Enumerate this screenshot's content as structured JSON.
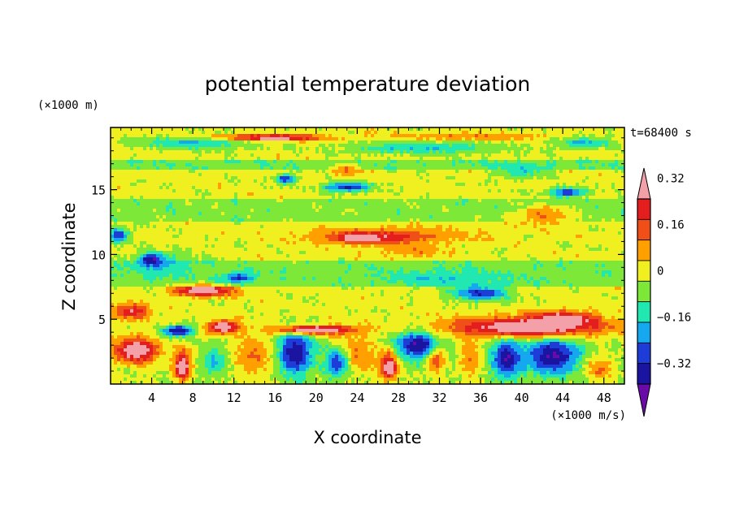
{
  "chart_data": {
    "type": "heatmap",
    "title": "potential temperature deviation",
    "xlabel": "X coordinate",
    "ylabel": "Z coordinate",
    "x_unit": "(×1000 m/s)",
    "y_unit": "(×1000 m)",
    "time_label": "t=68400 s",
    "xlim": [
      0,
      50
    ],
    "ylim": [
      0,
      19.8
    ],
    "x_ticks": [
      4,
      8,
      12,
      16,
      20,
      24,
      28,
      32,
      36,
      40,
      44,
      48
    ],
    "y_ticks": [
      5,
      10,
      15
    ],
    "colorbar": {
      "labels": [
        "0.32",
        "0.16",
        "0",
        "-0.16",
        "-0.32"
      ],
      "label_values": [
        0.32,
        0.16,
        0,
        -0.16,
        -0.32
      ],
      "levels": [
        -0.4,
        -0.32,
        -0.24,
        -0.16,
        -0.08,
        0,
        0.08,
        0.16,
        0.24,
        0.32,
        0.4
      ],
      "colors": [
        "#6a0aa8",
        "#1a14a0",
        "#1e3cd8",
        "#16a8ee",
        "#20e8b0",
        "#7ee838",
        "#f0f020",
        "#ffa000",
        "#f05018",
        "#e41e1e",
        "#f4a0a8"
      ],
      "extend": "both"
    },
    "features": [
      {
        "x": 2.5,
        "z": 2.6,
        "rx": 2.3,
        "rz": 1.0,
        "value": 0.45
      },
      {
        "x": 7.0,
        "z": 1.6,
        "rx": 1.0,
        "rz": 1.3,
        "value": 0.32
      },
      {
        "x": 7.0,
        "z": 1.2,
        "rx": 0.6,
        "rz": 0.6,
        "value": 0.45
      },
      {
        "x": 27.0,
        "z": 1.6,
        "rx": 1.0,
        "rz": 1.3,
        "value": 0.32
      },
      {
        "x": 27.2,
        "z": 1.3,
        "rx": 0.6,
        "rz": 0.8,
        "value": 0.45
      },
      {
        "x": 31.5,
        "z": 2.4,
        "rx": 1.0,
        "rz": 1.2,
        "value": 0.45
      },
      {
        "x": 14.0,
        "z": 2.2,
        "rx": 2.2,
        "rz": 1.6,
        "value": 0.16
      },
      {
        "x": 24.0,
        "z": 2.4,
        "rx": 2.0,
        "rz": 1.6,
        "value": 0.16
      },
      {
        "x": 35.0,
        "z": 2.0,
        "rx": 1.2,
        "rz": 1.6,
        "value": 0.16
      },
      {
        "x": 18.0,
        "z": 2.4,
        "rx": 1.8,
        "rz": 1.8,
        "value": -0.4
      },
      {
        "x": 22.0,
        "z": 1.6,
        "rx": 1.2,
        "rz": 1.2,
        "value": -0.32
      },
      {
        "x": 30.0,
        "z": 3.0,
        "rx": 2.5,
        "rz": 1.2,
        "value": -0.4
      },
      {
        "x": 38.5,
        "z": 2.0,
        "rx": 1.5,
        "rz": 1.6,
        "value": -0.4
      },
      {
        "x": 43.0,
        "z": 2.2,
        "rx": 3.0,
        "rz": 1.6,
        "value": -0.4
      },
      {
        "x": 10.0,
        "z": 1.8,
        "rx": 1.2,
        "rz": 1.2,
        "value": -0.16
      },
      {
        "x": 47.5,
        "z": 1.2,
        "rx": 1.5,
        "rz": 1.0,
        "value": 0.16
      },
      {
        "x": 6.5,
        "z": 4.1,
        "rx": 1.6,
        "rz": 0.45,
        "value": -0.4
      },
      {
        "x": 40.5,
        "z": 4.4,
        "rx": 8.0,
        "rz": 0.8,
        "value": 0.45
      },
      {
        "x": 44.0,
        "z": 5.0,
        "rx": 3.0,
        "rz": 0.6,
        "value": 0.45
      },
      {
        "x": 20.0,
        "z": 4.2,
        "rx": 4.0,
        "rz": 0.35,
        "value": 0.45
      },
      {
        "x": 11.0,
        "z": 4.4,
        "rx": 1.6,
        "rz": 0.5,
        "value": 0.45
      },
      {
        "x": 2.0,
        "z": 5.6,
        "rx": 2.0,
        "rz": 0.6,
        "value": 0.32
      },
      {
        "x": 9.0,
        "z": 7.2,
        "rx": 3.0,
        "rz": 0.45,
        "value": 0.45
      },
      {
        "x": 12.5,
        "z": 8.2,
        "rx": 1.5,
        "rz": 0.4,
        "value": -0.32
      },
      {
        "x": 32.5,
        "z": 8.2,
        "rx": 6.0,
        "rz": 0.6,
        "value": -0.16
      },
      {
        "x": 36.0,
        "z": 7.0,
        "rx": 3.0,
        "rz": 0.6,
        "value": -0.32
      },
      {
        "x": 5.0,
        "z": 9.2,
        "rx": 3.5,
        "rz": 1.0,
        "value": -0.16
      },
      {
        "x": 4.0,
        "z": 9.6,
        "rx": 1.2,
        "rz": 0.5,
        "value": -0.4
      },
      {
        "x": 0.8,
        "z": 11.5,
        "rx": 1.0,
        "rz": 0.6,
        "value": -0.32
      },
      {
        "x": 27.0,
        "z": 11.5,
        "rx": 9.0,
        "rz": 0.7,
        "value": 0.16
      },
      {
        "x": 25.5,
        "z": 11.3,
        "rx": 4.5,
        "rz": 0.5,
        "value": 0.32
      },
      {
        "x": 24.0,
        "z": 11.3,
        "rx": 1.5,
        "rz": 0.3,
        "value": 0.45
      },
      {
        "x": 29.5,
        "z": 10.3,
        "rx": 3.0,
        "rz": 0.5,
        "value": 0.16
      },
      {
        "x": 42.0,
        "z": 13.0,
        "rx": 3.0,
        "rz": 0.8,
        "value": 0.16
      },
      {
        "x": 23.0,
        "z": 16.5,
        "rx": 1.5,
        "rz": 0.5,
        "value": 0.16
      },
      {
        "x": 23.0,
        "z": 15.2,
        "rx": 2.5,
        "rz": 0.4,
        "value": -0.32
      },
      {
        "x": 17.0,
        "z": 15.8,
        "rx": 1.0,
        "rz": 0.4,
        "value": -0.32
      },
      {
        "x": 44.5,
        "z": 14.8,
        "rx": 2.0,
        "rz": 0.4,
        "value": -0.32
      },
      {
        "x": 40.0,
        "z": 16.5,
        "rx": 2.5,
        "rz": 0.6,
        "value": -0.16
      },
      {
        "x": 15.0,
        "z": 19.0,
        "rx": 6.0,
        "rz": 0.25,
        "value": 0.45
      },
      {
        "x": 35.0,
        "z": 19.1,
        "rx": 8.0,
        "rz": 0.3,
        "value": 0.16
      },
      {
        "x": 8.0,
        "z": 18.6,
        "rx": 6.0,
        "rz": 0.5,
        "value": -0.16
      },
      {
        "x": 30.0,
        "z": 18.2,
        "rx": 8.0,
        "rz": 0.5,
        "value": -0.16
      },
      {
        "x": 46.0,
        "z": 18.6,
        "rx": 3.0,
        "rz": 0.5,
        "value": -0.16
      }
    ]
  }
}
